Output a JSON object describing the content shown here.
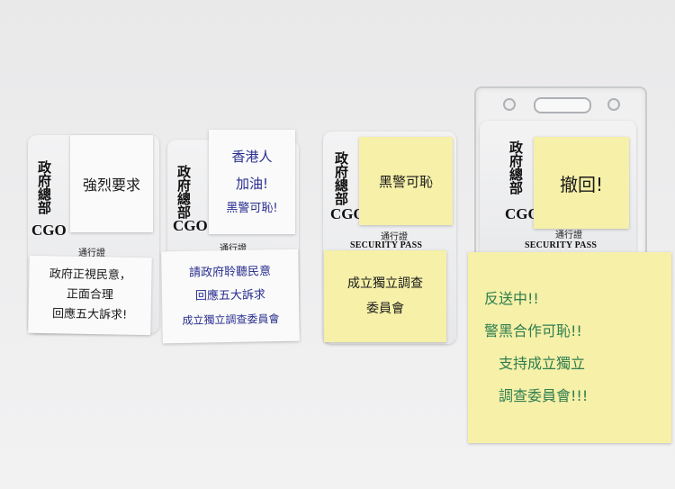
{
  "pass": {
    "org": "政府總部",
    "code": "CGO",
    "pass_label_zh": "通行證",
    "pass_label_en": "SECURITY PASS"
  },
  "notes": {
    "n1_top": "強烈要求",
    "n1_bottom": [
      "政府正視民意，",
      "正面合理",
      "回應五大訴求!"
    ],
    "n2_top": [
      "香港人",
      "加油!",
      "黑警可恥!"
    ],
    "n2_bottom": [
      "請政府聆聽民意",
      "回應五大訴求",
      "成立獨立調查委員會"
    ],
    "n3_top": "黑警可恥",
    "n3_bottom": [
      "成立獨立調查",
      "委員會"
    ],
    "n4_top": "撤回!",
    "n4_bottom": [
      "反送中!!",
      "警黑合作可恥!!",
      "支持成立獨立",
      "調查委員會!!!"
    ]
  },
  "colors": {
    "ink_black": "#1a1a1a",
    "ink_blue": "#2a2f8f",
    "ink_green": "#2e7d4f",
    "note_yellow": "#f6f0a8",
    "note_white": "#fafafa"
  }
}
